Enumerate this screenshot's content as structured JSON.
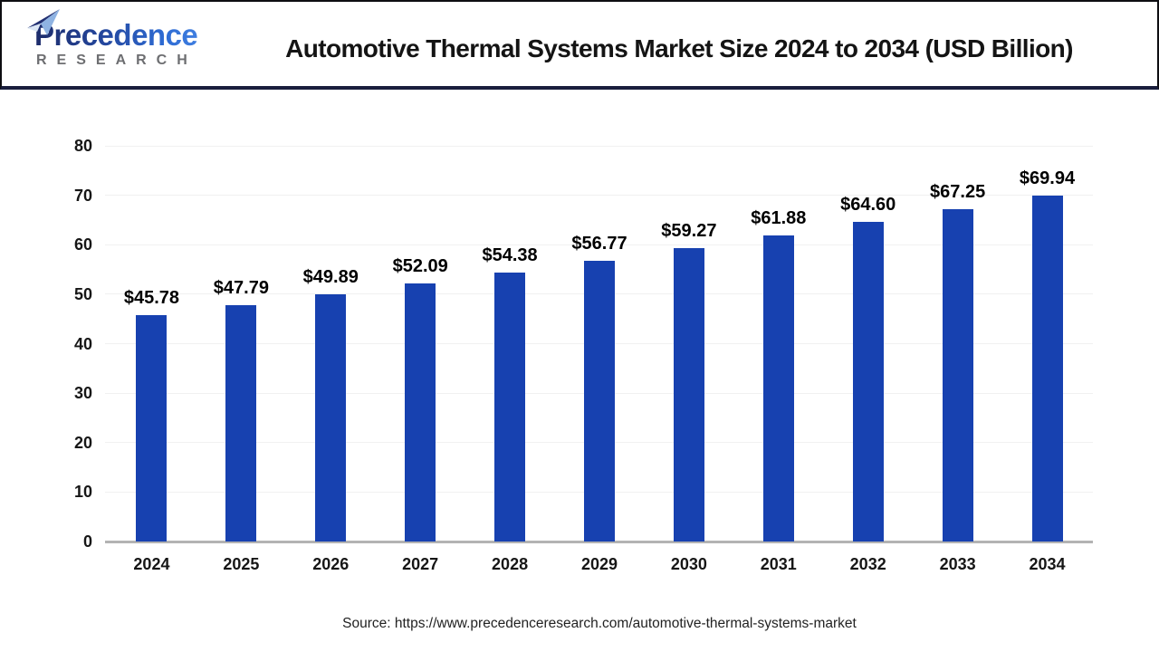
{
  "header": {
    "title": "Automotive Thermal Systems Market Size 2024 to 2034 (USD Billion)",
    "logo": {
      "brand": "Precedence",
      "sub": "RESEARCH",
      "icon": "paper-plane-icon"
    }
  },
  "chart_data": {
    "type": "bar",
    "title": "Automotive Thermal Systems Market Size 2024 to 2034 (USD Billion)",
    "categories": [
      "2024",
      "2025",
      "2026",
      "2027",
      "2028",
      "2029",
      "2030",
      "2031",
      "2032",
      "2033",
      "2034"
    ],
    "values": [
      45.78,
      47.79,
      49.89,
      52.09,
      54.38,
      56.77,
      59.27,
      61.88,
      64.6,
      67.25,
      69.94
    ],
    "value_labels": [
      "$45.78",
      "$47.79",
      "$49.89",
      "$52.09",
      "$54.38",
      "$56.77",
      "$59.27",
      "$61.88",
      "$64.60",
      "$67.25",
      "$69.94"
    ],
    "xlabel": "",
    "ylabel": "",
    "ylim": [
      0,
      80
    ],
    "yticks": [
      0,
      10,
      20,
      30,
      40,
      50,
      60,
      70,
      80
    ],
    "grid": true,
    "legend": "none",
    "colors": {
      "bar": "#1741b0",
      "gridline": "#f1f1f1",
      "axis_line": "#b3b3b3",
      "label_text": "#000000"
    }
  },
  "footer": {
    "source": "Source: https://www.precedenceresearch.com/automotive-thermal-systems-market"
  }
}
